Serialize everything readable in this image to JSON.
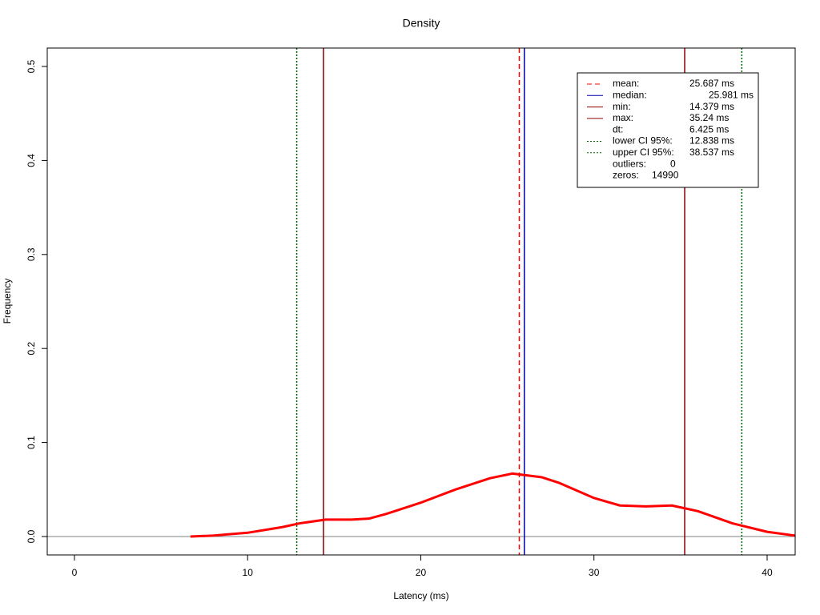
{
  "chart_data": {
    "type": "line",
    "title": "Density",
    "x_label": "Latency (ms)",
    "y_label": "Frequency",
    "x": [
      6.7,
      8,
      10,
      12,
      13,
      14.5,
      16,
      17,
      18,
      20,
      22,
      24,
      25.3,
      27,
      28,
      30,
      31.5,
      33,
      34.5,
      36,
      38,
      40,
      41.6
    ],
    "series": [
      {
        "color": "#ff0000",
        "values": [
          0.0,
          0.001,
          0.004,
          0.01,
          0.014,
          0.018,
          0.018,
          0.019,
          0.024,
          0.036,
          0.05,
          0.062,
          0.067,
          0.063,
          0.057,
          0.041,
          0.033,
          0.032,
          0.033,
          0.027,
          0.014,
          0.005,
          0.001
        ]
      }
    ],
    "xlim": [
      -1.57,
      41.62
    ],
    "ylim": [
      -0.0196,
      0.5196
    ],
    "xticks": [
      0,
      10,
      20,
      30,
      40
    ],
    "yticks": [
      {
        "value": 0,
        "label": "0.0"
      },
      0.1,
      0.2,
      0.3,
      0.4,
      0.5
    ],
    "baseline": 0,
    "legend": [
      {
        "name": "mean:",
        "value": 25.687,
        "label": "25.687 ms",
        "color": "#ff0000",
        "dash": "dashed"
      },
      {
        "name": "median:",
        "value": 25.981,
        "label": "25.981 ms",
        "color": "#0000aa",
        "dash": "solid"
      },
      {
        "name": "min:",
        "value": 14.379,
        "label": "14.379 ms",
        "color": "#8b0000",
        "dash": "solid"
      },
      {
        "name": "max:",
        "value": 35.24,
        "label": "35.24 ms",
        "color": "#8b0000",
        "dash": "solid"
      },
      {
        "name": "dt:",
        "label": "6.425 ms"
      },
      {
        "name": "lower CI 95%:",
        "value": 12.838,
        "label": "12.838 ms",
        "color": "#006400",
        "dash": "dotted"
      },
      {
        "name": "upper CI 95%:",
        "value": 38.537,
        "label": "38.537 ms",
        "color": "#006400",
        "dash": "dotted"
      },
      {
        "name": "outliers:",
        "value": 0
      },
      {
        "name": "zeros:",
        "value": 14990
      }
    ]
  }
}
